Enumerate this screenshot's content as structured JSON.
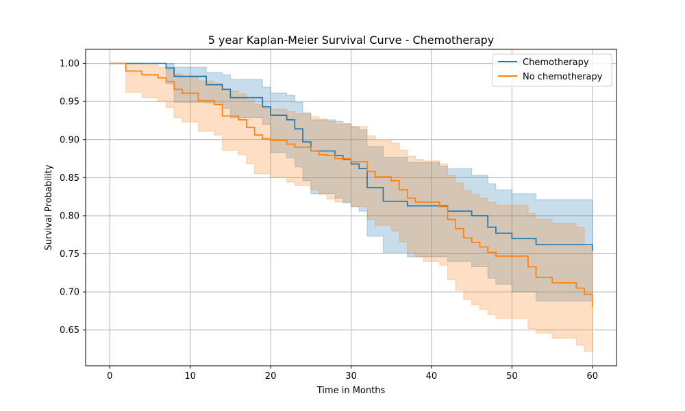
{
  "chart_data": {
    "type": "line",
    "step": "post",
    "title": "5 year Kaplan-Meier Survival Curve - Chemotherapy",
    "xlabel": "Time in Months",
    "ylabel": "Survival Probability",
    "xlim": [
      -3,
      63
    ],
    "ylim": [
      0.603,
      1.0185
    ],
    "xticks": [
      0,
      10,
      20,
      30,
      40,
      50,
      60
    ],
    "yticks": [
      0.65,
      0.7,
      0.75,
      0.8,
      0.85,
      0.9,
      0.95,
      1.0
    ],
    "ytick_labels": [
      "0.65",
      "0.70",
      "0.75",
      "0.80",
      "0.85",
      "0.90",
      "0.95",
      "1.00"
    ],
    "grid": true,
    "legend_position": "top-right",
    "series": [
      {
        "name": "Chemotherapy",
        "color": "#1f77b4",
        "x": [
          0,
          7,
          8,
          12,
          14,
          15,
          19,
          20,
          22,
          23,
          24,
          25,
          27,
          28,
          29,
          30,
          31,
          32,
          34,
          37,
          41,
          42,
          45,
          47,
          48,
          50,
          53,
          60
        ],
        "y": [
          1.0,
          0.994,
          0.983,
          0.972,
          0.966,
          0.955,
          0.943,
          0.932,
          0.926,
          0.914,
          0.897,
          0.885,
          0.885,
          0.879,
          0.874,
          0.868,
          0.862,
          0.837,
          0.819,
          0.813,
          0.813,
          0.806,
          0.8,
          0.785,
          0.777,
          0.77,
          0.762,
          0.754
        ],
        "lower": [
          1.0,
          0.973,
          0.949,
          0.948,
          0.941,
          0.929,
          0.92,
          0.883,
          0.876,
          0.864,
          0.846,
          0.829,
          0.829,
          0.823,
          0.817,
          0.812,
          0.806,
          0.773,
          0.752,
          0.746,
          0.746,
          0.74,
          0.733,
          0.718,
          0.71,
          0.7,
          0.688,
          0.688
        ],
        "upper": [
          1.0,
          1.0,
          0.995,
          0.988,
          0.985,
          0.979,
          0.969,
          0.961,
          0.958,
          0.949,
          0.935,
          0.926,
          0.926,
          0.924,
          0.921,
          0.917,
          0.913,
          0.891,
          0.877,
          0.87,
          0.865,
          0.862,
          0.853,
          0.842,
          0.834,
          0.829,
          0.821,
          0.821
        ]
      },
      {
        "name": "No chemotherapy",
        "color": "#ff7f0e",
        "x": [
          0,
          2,
          4,
          6,
          7,
          8,
          9,
          11,
          13,
          14,
          16,
          17,
          18,
          19,
          20,
          22,
          23,
          25,
          26,
          27,
          28,
          30,
          32,
          33,
          35,
          36,
          37,
          38,
          39,
          41,
          42,
          43,
          44,
          45,
          46,
          47,
          48,
          50,
          52,
          53,
          55,
          58,
          59,
          60
        ],
        "y": [
          1.0,
          0.99,
          0.985,
          0.981,
          0.976,
          0.966,
          0.961,
          0.951,
          0.946,
          0.931,
          0.926,
          0.916,
          0.906,
          0.901,
          0.899,
          0.894,
          0.89,
          0.885,
          0.88,
          0.879,
          0.875,
          0.871,
          0.858,
          0.851,
          0.846,
          0.834,
          0.823,
          0.818,
          0.818,
          0.812,
          0.795,
          0.783,
          0.771,
          0.765,
          0.759,
          0.752,
          0.747,
          0.747,
          0.733,
          0.719,
          0.712,
          0.705,
          0.697,
          0.68
        ],
        "lower": [
          1.0,
          0.962,
          0.955,
          0.95,
          0.942,
          0.929,
          0.923,
          0.911,
          0.906,
          0.886,
          0.88,
          0.868,
          0.855,
          0.855,
          0.85,
          0.844,
          0.84,
          0.834,
          0.828,
          0.822,
          0.818,
          0.812,
          0.795,
          0.787,
          0.78,
          0.766,
          0.752,
          0.746,
          0.74,
          0.735,
          0.716,
          0.702,
          0.69,
          0.683,
          0.677,
          0.67,
          0.665,
          0.665,
          0.652,
          0.646,
          0.639,
          0.63,
          0.622,
          0.622
        ],
        "upper": [
          1.0,
          1.0,
          0.998,
          0.995,
          0.992,
          0.986,
          0.983,
          0.977,
          0.974,
          0.964,
          0.96,
          0.952,
          0.946,
          0.941,
          0.94,
          0.937,
          0.934,
          0.93,
          0.927,
          0.924,
          0.92,
          0.917,
          0.905,
          0.899,
          0.895,
          0.886,
          0.878,
          0.874,
          0.872,
          0.868,
          0.853,
          0.843,
          0.833,
          0.828,
          0.823,
          0.818,
          0.814,
          0.814,
          0.803,
          0.795,
          0.79,
          0.785,
          0.76,
          0.76
        ]
      }
    ]
  }
}
